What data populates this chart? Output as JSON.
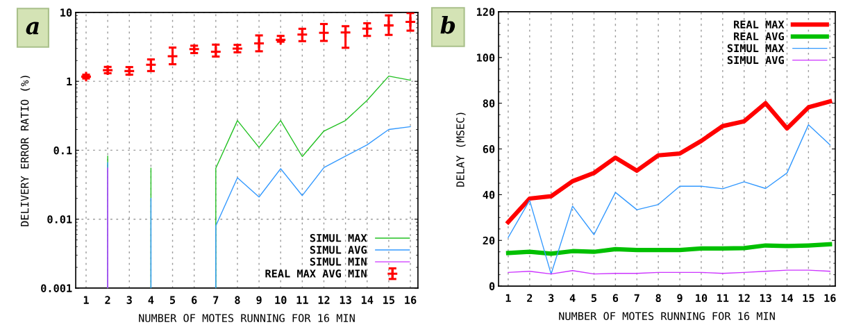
{
  "chart_data": [
    {
      "type": "line",
      "title": "a",
      "xlabel": "NUMBER OF MOTES RUNNING FOR 16 MIN",
      "ylabel": "DELIVERY ERROR RATIO (%)",
      "log": "y",
      "grid": true,
      "legend": "bottom right",
      "xlim": [
        0.52,
        16.35
      ],
      "xticks": [
        1,
        2,
        3,
        4,
        5,
        6,
        7,
        8,
        9,
        10,
        11,
        12,
        13,
        14,
        15,
        16
      ],
      "ylim": [
        0.001,
        10
      ],
      "yticks": [
        {
          "value": 0.001,
          "label": "0.001"
        },
        {
          "value": 0.01,
          "label": "0.01"
        },
        {
          "value": 0.1,
          "label": "0.1"
        },
        1,
        10
      ],
      "series": [
        {
          "name": "SIMUL MAX",
          "color": "#22c022",
          "x": [
            2,
            2,
            3,
            4,
            4,
            6,
            7,
            7,
            8,
            9,
            10,
            11,
            12,
            13,
            14,
            15,
            16
          ],
          "values": [
            0.001,
            0.082,
            null,
            0.001,
            0.055,
            null,
            0.001,
            0.055,
            0.27,
            0.11,
            0.27,
            0.081,
            0.19,
            0.27,
            0.53,
            1.19,
            1.04
          ]
        },
        {
          "name": "SIMUL AVG",
          "color": "#3399ff",
          "x": [
            2,
            2,
            3,
            4,
            4,
            6,
            7,
            7,
            8,
            9,
            10,
            11,
            12,
            13,
            14,
            15,
            16
          ],
          "values": [
            0.001,
            0.066,
            null,
            0.001,
            0.02,
            null,
            0.001,
            0.008,
            0.04,
            0.021,
            0.054,
            0.022,
            0.056,
            0.082,
            0.12,
            0.2,
            0.22
          ]
        },
        {
          "name": "SIMUL MIN",
          "color": "#cc33ff",
          "x": [
            2,
            2
          ],
          "values": [
            0.001,
            0.055
          ]
        },
        {
          "name": "REAL MAX AVG MIN",
          "color": "#ff0000",
          "type": "scatter",
          "marker": "cross",
          "x": [
            1,
            2,
            3,
            4,
            5,
            6,
            7,
            8,
            9,
            10,
            11,
            12,
            13,
            14,
            15,
            16
          ],
          "values": [
            1.17,
            1.45,
            1.41,
            1.74,
            2.31,
            2.93,
            2.69,
            2.99,
            3.56,
            4.0,
            4.77,
            5.07,
            5.11,
            5.83,
            6.48,
            7.3
          ],
          "errors": [
            [
              1.1,
              1.25
            ],
            [
              1.31,
              1.62
            ],
            [
              1.25,
              1.61
            ],
            [
              1.41,
              2.08
            ],
            [
              1.77,
              3.09
            ],
            [
              2.57,
              3.29
            ],
            [
              2.29,
              3.41
            ],
            [
              2.64,
              3.38
            ],
            [
              2.73,
              4.64
            ],
            [
              3.76,
              4.56
            ],
            [
              3.83,
              5.79
            ],
            [
              3.86,
              6.79
            ],
            [
              3.07,
              6.31
            ],
            [
              4.56,
              6.96
            ],
            [
              4.72,
              9.05
            ],
            [
              5.44,
              9.8
            ]
          ]
        }
      ]
    },
    {
      "type": "line",
      "title": "b",
      "xlabel": "NUMBER OF MOTES RUNNING FOR 16 MIN",
      "ylabel": "DELAY (MSEC)",
      "grid": "x",
      "legend": "top right",
      "xlim": [
        0.55,
        16.25
      ],
      "xticks": [
        1,
        2,
        3,
        4,
        5,
        6,
        7,
        8,
        9,
        10,
        11,
        12,
        13,
        14,
        15,
        16
      ],
      "ylim": [
        0,
        120
      ],
      "yticks": [
        0,
        20,
        40,
        60,
        80,
        100,
        120
      ],
      "x": [
        1,
        2,
        3,
        4,
        5,
        6,
        7,
        8,
        9,
        10,
        11,
        12,
        13,
        14,
        15,
        16
      ],
      "series": [
        {
          "name": "REAL MAX",
          "color": "#ff0000",
          "values": [
            28,
            38.3,
            39.3,
            45.9,
            49.5,
            56.2,
            50.5,
            57.2,
            58,
            63.5,
            70,
            72.1,
            80,
            69,
            78.2,
            80.8
          ]
        },
        {
          "name": "REAL AVG",
          "color": "#00c000",
          "values": [
            14.5,
            15,
            14.2,
            15.3,
            15,
            16.2,
            15.8,
            15.8,
            15.8,
            16.5,
            16.5,
            16.6,
            17.8,
            17.5,
            17.8,
            18.3
          ]
        },
        {
          "name": "SIMUL MAX",
          "color": "#3399ff",
          "values": [
            21.3,
            37.5,
            5.3,
            35,
            22.5,
            41,
            33.4,
            35.7,
            43.7,
            43.7,
            42.6,
            45.6,
            42.7,
            49.5,
            70.6,
            61.8
          ]
        },
        {
          "name": "SIMUL AVG",
          "color": "#cc33ff",
          "values": [
            6,
            6.5,
            5.3,
            6.8,
            5.3,
            5.6,
            5.6,
            6,
            6,
            6,
            5.6,
            6,
            6.5,
            7,
            7,
            6.5
          ]
        }
      ]
    }
  ]
}
